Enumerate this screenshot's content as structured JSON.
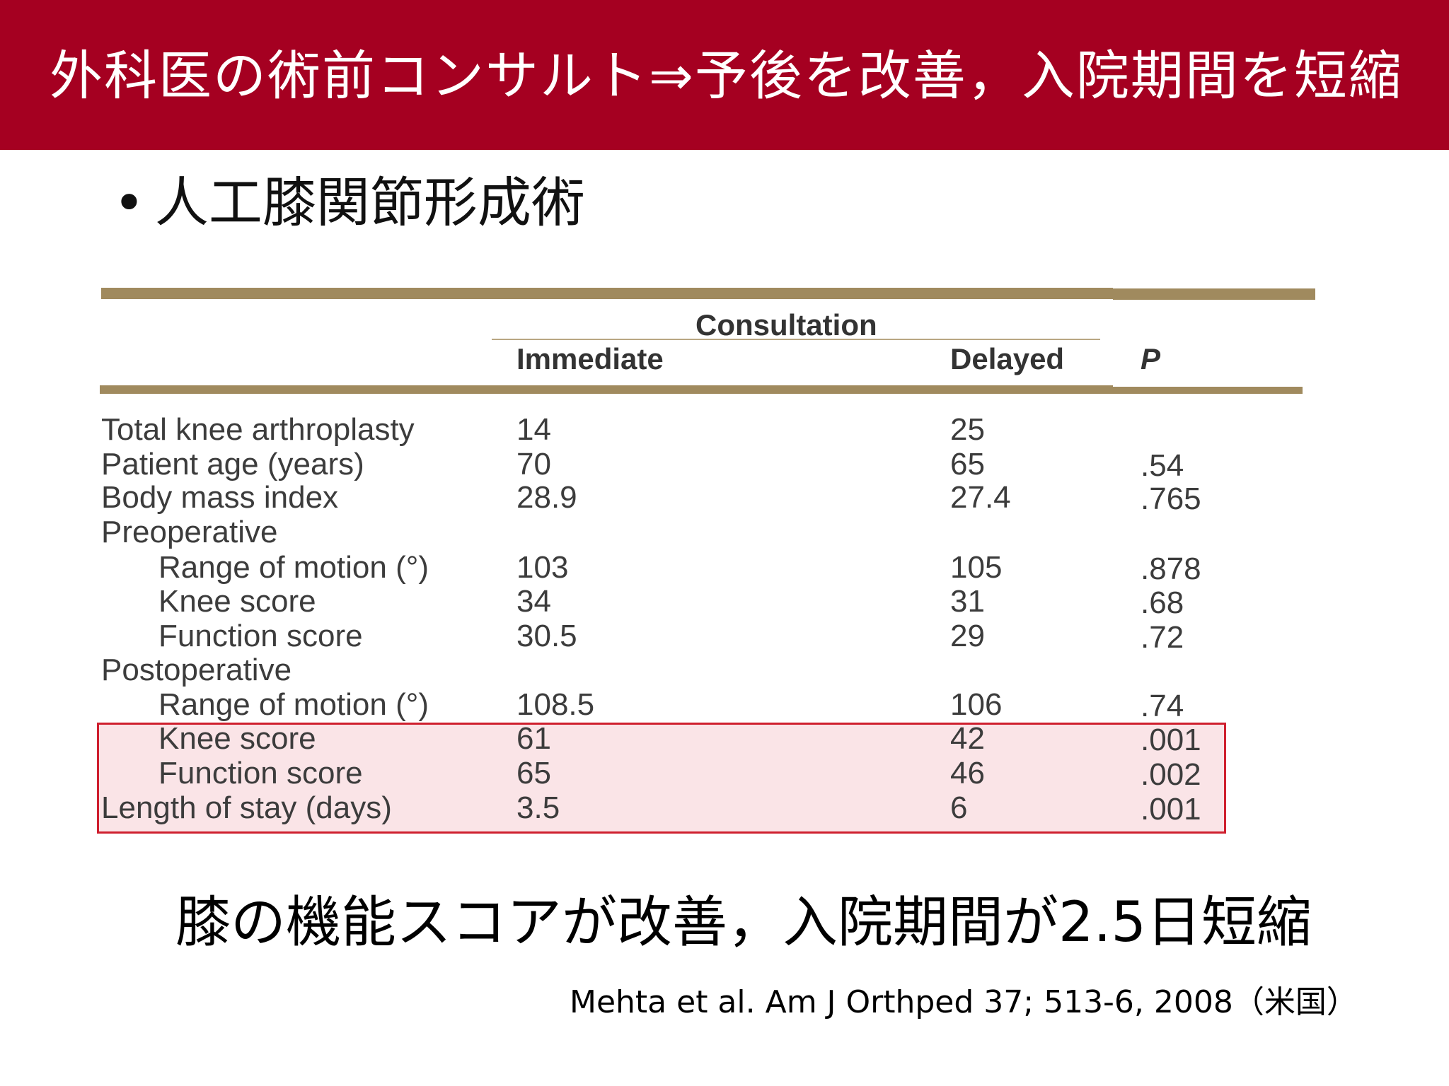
{
  "slide": {
    "title": "外科医の術前コンサルト⇒予後を改善，入院期間を短縮",
    "bullet": "人工膝関節形成術",
    "conclusion": "膝の機能スコアが改善，入院期間が2.5日短縮",
    "citation": "Mehta et al. Am J Orthped 37; 513-6, 2008（米国）"
  },
  "table": {
    "group_header": "Consultation",
    "columns": [
      "Immediate",
      "Delayed",
      "P"
    ],
    "rows": [
      {
        "label": "Total knee arthroplasty",
        "indent": false,
        "immediate": "14",
        "delayed": "25",
        "p": ""
      },
      {
        "label": "Patient age (years)",
        "indent": false,
        "immediate": "70",
        "delayed": "65",
        "p": ".54"
      },
      {
        "label": "Body mass index",
        "indent": false,
        "immediate": "28.9",
        "delayed": "27.4",
        "p": ".765"
      },
      {
        "label": "Preoperative",
        "indent": false,
        "immediate": "",
        "delayed": "",
        "p": ""
      },
      {
        "label": "Range of motion (°)",
        "indent": true,
        "immediate": "103",
        "delayed": "105",
        "p": ".878"
      },
      {
        "label": "Knee score",
        "indent": true,
        "immediate": "34",
        "delayed": "31",
        "p": ".68"
      },
      {
        "label": "Function score",
        "indent": true,
        "immediate": "30.5",
        "delayed": "29",
        "p": ".72"
      },
      {
        "label": "Postoperative",
        "indent": false,
        "immediate": "",
        "delayed": "",
        "p": ""
      },
      {
        "label": "Range of motion (°)",
        "indent": true,
        "immediate": "108.5",
        "delayed": "106",
        "p": ".74"
      },
      {
        "label": "Knee score",
        "indent": true,
        "immediate": "61",
        "delayed": "42",
        "p": ".001"
      },
      {
        "label": "Function score",
        "indent": true,
        "immediate": "65",
        "delayed": "46",
        "p": ".002"
      },
      {
        "label": "Length of stay (days)",
        "indent": false,
        "immediate": "3.5",
        "delayed": "6",
        "p": ".001"
      }
    ],
    "highlighted_rows": [
      9,
      10,
      11
    ]
  },
  "colors": {
    "header_bg": "#a50021",
    "rule": "#a08a5e",
    "highlight_fill": "#fae4e7",
    "highlight_border": "#cf1f2e"
  }
}
